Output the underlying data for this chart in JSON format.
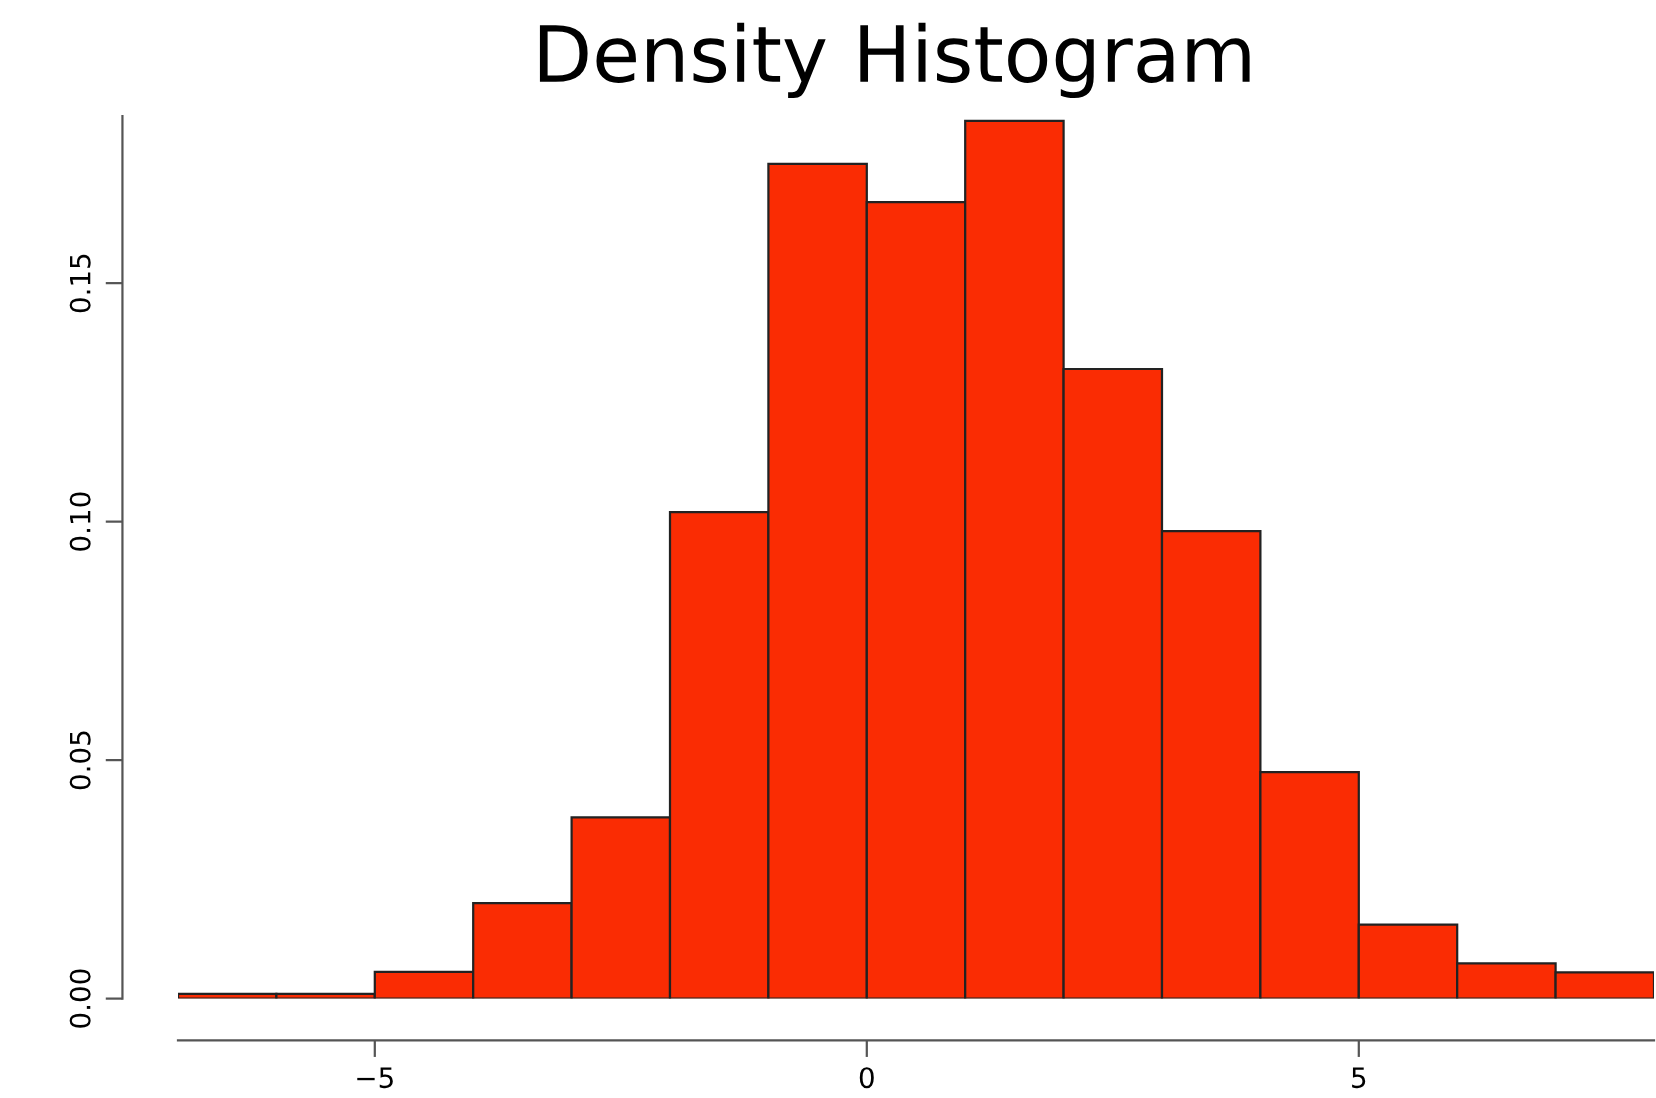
{
  "chart_data": {
    "type": "histogram",
    "title": "Density Histogram",
    "bins": [
      -7,
      -6,
      -5,
      -4,
      -3,
      -2,
      -1,
      0,
      1,
      2,
      3,
      4,
      5,
      6,
      7,
      8
    ],
    "values": [
      0.001,
      0.001,
      0.0056,
      0.02,
      0.038,
      0.102,
      0.175,
      0.167,
      0.184,
      0.132,
      0.098,
      0.0475,
      0.0155,
      0.0074,
      0.0055
    ],
    "color": "#fa2c03",
    "xlim": [
      -7,
      8
    ],
    "xticks": [
      {
        "value": -5,
        "label": "−5"
      },
      0,
      5
    ],
    "ylim": [
      0,
      0.185
    ],
    "yticks": [
      {
        "value": 0,
        "label": "0.00"
      },
      0.05,
      {
        "value": 0.1,
        "label": "0.10"
      },
      0.15
    ],
    "grid": false
  }
}
